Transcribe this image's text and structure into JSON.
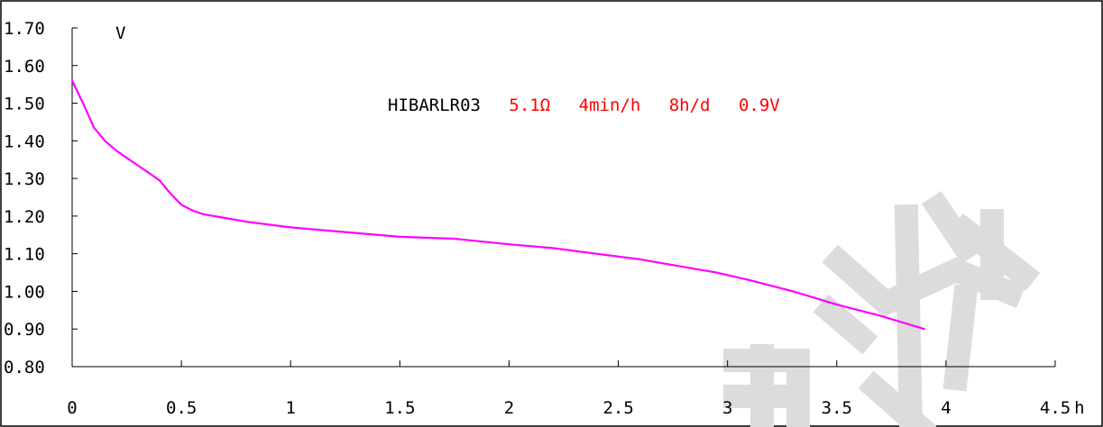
{
  "chart_data": {
    "type": "line",
    "title": "",
    "xlabel": "",
    "ylabel": "",
    "y_unit": "V",
    "x_unit": "h",
    "annotation": {
      "model": "HIBARLR03",
      "conditions": [
        "5.1Ω",
        "4min/h",
        "8h/d",
        "0.9V"
      ]
    },
    "x_ticks": [
      "0",
      "0.5",
      "1",
      "1.5",
      "2",
      "2.5",
      "3",
      "3.5",
      "4",
      "4.5"
    ],
    "y_ticks": [
      "1.70",
      "1.60",
      "1.50",
      "1.40",
      "1.30",
      "1.20",
      "1.10",
      "1.00",
      "0.90",
      "0.80"
    ],
    "xlim": [
      0,
      4.5
    ],
    "ylim": [
      0.8,
      1.7
    ],
    "grid": false,
    "watermark": "电池",
    "series": [
      {
        "color": "#ff00ff",
        "x": [
          0,
          0.05,
          0.1,
          0.15,
          0.2,
          0.3,
          0.4,
          0.45,
          0.5,
          0.55,
          0.6,
          0.7,
          0.8,
          1.0,
          1.2,
          1.5,
          1.75,
          2.0,
          2.2,
          2.4,
          2.6,
          2.8,
          2.95,
          3.1,
          3.3,
          3.5,
          3.7,
          3.9
        ],
        "y": [
          1.56,
          1.5,
          1.435,
          1.4,
          1.375,
          1.335,
          1.295,
          1.26,
          1.23,
          1.215,
          1.205,
          1.195,
          1.185,
          1.17,
          1.16,
          1.145,
          1.14,
          1.125,
          1.115,
          1.1,
          1.085,
          1.065,
          1.05,
          1.03,
          1.0,
          0.965,
          0.935,
          0.9
        ]
      }
    ]
  }
}
